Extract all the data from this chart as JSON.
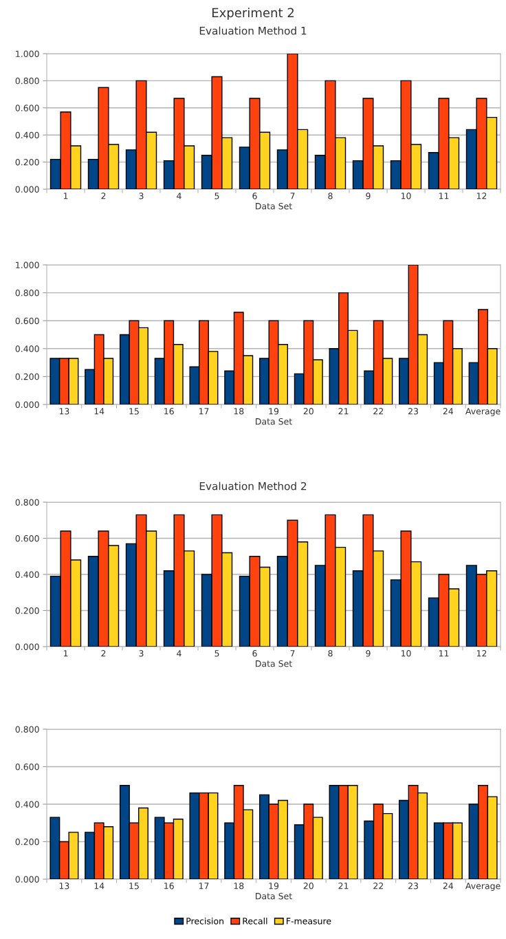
{
  "chart_data": [
    {
      "type": "bar",
      "title": "Experiment 2",
      "subtitle": "Evaluation Method 1",
      "xlabel": "Data Set",
      "categories": [
        "1",
        "2",
        "3",
        "4",
        "5",
        "6",
        "7",
        "8",
        "9",
        "10",
        "11",
        "12"
      ],
      "series": [
        {
          "color": "#004586",
          "values": [
            0.22,
            0.22,
            0.29,
            0.21,
            0.25,
            0.31,
            0.29,
            0.25,
            0.21,
            0.21,
            0.27,
            0.44
          ]
        },
        {
          "color": "#ff420e",
          "values": [
            0.57,
            0.75,
            0.8,
            0.67,
            0.83,
            0.67,
            1.0,
            0.8,
            0.67,
            0.8,
            0.67,
            0.67
          ]
        },
        {
          "color": "#ffd320",
          "values": [
            0.32,
            0.33,
            0.42,
            0.32,
            0.38,
            0.42,
            0.44,
            0.38,
            0.32,
            0.33,
            0.38,
            0.53
          ]
        }
      ],
      "ylim": [
        0,
        1
      ],
      "yticks": [
        {
          "value": 0,
          "label": "0.000"
        },
        {
          "value": 0.2,
          "label": "0.200"
        },
        {
          "value": 0.4,
          "label": "0.400"
        },
        {
          "value": 0.6,
          "label": "0.600"
        },
        {
          "value": 0.8,
          "label": "0.800"
        },
        {
          "value": 1,
          "label": "1.000"
        }
      ],
      "grid": "y"
    },
    {
      "type": "bar",
      "xlabel": "Data Set",
      "categories": [
        "13",
        "14",
        "15",
        "16",
        "17",
        "18",
        "19",
        "20",
        "21",
        "22",
        "23",
        "24",
        "Average"
      ],
      "series": [
        {
          "color": "#004586",
          "values": [
            0.33,
            0.25,
            0.5,
            0.33,
            0.27,
            0.24,
            0.33,
            0.22,
            0.4,
            0.24,
            0.33,
            0.3,
            0.3
          ]
        },
        {
          "color": "#ff420e",
          "values": [
            0.33,
            0.5,
            0.6,
            0.6,
            0.6,
            0.66,
            0.6,
            0.6,
            0.8,
            0.6,
            1.0,
            0.6,
            0.68
          ]
        },
        {
          "color": "#ffd320",
          "values": [
            0.33,
            0.33,
            0.55,
            0.43,
            0.38,
            0.35,
            0.43,
            0.32,
            0.53,
            0.33,
            0.5,
            0.4,
            0.4
          ]
        }
      ],
      "ylim": [
        0,
        1
      ],
      "yticks": [
        {
          "value": 0,
          "label": "0.000"
        },
        {
          "value": 0.2,
          "label": "0.200"
        },
        {
          "value": 0.4,
          "label": "0.400"
        },
        {
          "value": 0.6,
          "label": "0.600"
        },
        {
          "value": 0.8,
          "label": "0.800"
        },
        {
          "value": 1,
          "label": "1.000"
        }
      ],
      "grid": "y"
    },
    {
      "type": "bar",
      "title": "Evaluation Method 2",
      "xlabel": "Data Set",
      "categories": [
        "1",
        "2",
        "3",
        "4",
        "5",
        "6",
        "7",
        "8",
        "9",
        "10",
        "11",
        "12"
      ],
      "series": [
        {
          "color": "#004586",
          "values": [
            0.39,
            0.5,
            0.57,
            0.42,
            0.4,
            0.39,
            0.5,
            0.45,
            0.42,
            0.37,
            0.27,
            0.45
          ]
        },
        {
          "color": "#ff420e",
          "values": [
            0.64,
            0.64,
            0.73,
            0.73,
            0.73,
            0.5,
            0.7,
            0.73,
            0.73,
            0.64,
            0.4,
            0.4
          ]
        },
        {
          "color": "#ffd320",
          "values": [
            0.48,
            0.56,
            0.64,
            0.53,
            0.52,
            0.44,
            0.58,
            0.55,
            0.53,
            0.47,
            0.32,
            0.42
          ]
        }
      ],
      "ylim": [
        0,
        0.8
      ],
      "yticks": [
        {
          "value": 0,
          "label": "0.000"
        },
        {
          "value": 0.2,
          "label": "0.200"
        },
        {
          "value": 0.4,
          "label": "0.400"
        },
        {
          "value": 0.6,
          "label": "0.600"
        },
        {
          "value": 0.8,
          "label": "0.800"
        }
      ],
      "grid": "y"
    },
    {
      "type": "bar",
      "xlabel": "Data Set",
      "categories": [
        "13",
        "14",
        "15",
        "16",
        "17",
        "18",
        "19",
        "20",
        "21",
        "22",
        "23",
        "24",
        "Average"
      ],
      "series": [
        {
          "name": "Precision",
          "color": "#004586",
          "values": [
            0.33,
            0.25,
            0.5,
            0.33,
            0.46,
            0.3,
            0.45,
            0.29,
            0.5,
            0.31,
            0.42,
            0.3,
            0.4
          ]
        },
        {
          "name": "Recall",
          "color": "#ff420e",
          "values": [
            0.2,
            0.3,
            0.3,
            0.3,
            0.46,
            0.5,
            0.4,
            0.4,
            0.5,
            0.4,
            0.5,
            0.3,
            0.5
          ]
        },
        {
          "name": "F-measure",
          "color": "#ffd320",
          "values": [
            0.25,
            0.28,
            0.38,
            0.32,
            0.46,
            0.37,
            0.42,
            0.33,
            0.5,
            0.35,
            0.46,
            0.3,
            0.44
          ]
        }
      ],
      "ylim": [
        0,
        0.8
      ],
      "yticks": [
        {
          "value": 0,
          "label": "0.000"
        },
        {
          "value": 0.2,
          "label": "0.200"
        },
        {
          "value": 0.4,
          "label": "0.400"
        },
        {
          "value": 0.6,
          "label": "0.600"
        },
        {
          "value": 0.8,
          "label": "0.800"
        }
      ],
      "grid": "y",
      "legend": "bottom"
    }
  ]
}
